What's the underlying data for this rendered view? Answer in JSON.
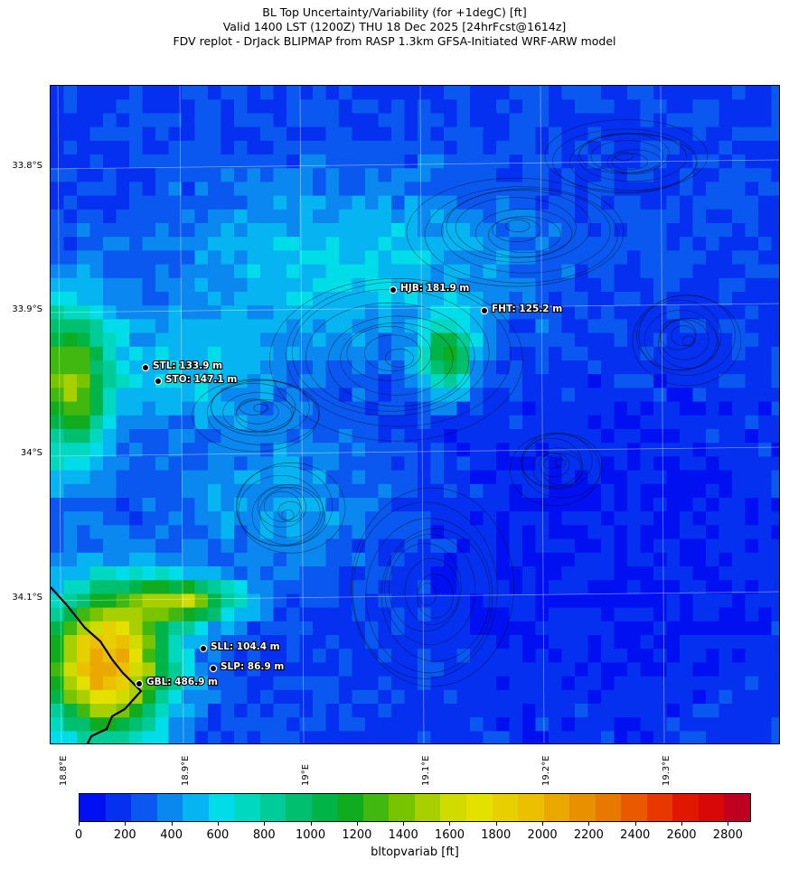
{
  "title": {
    "line1": "BL Top Uncertainty/Variability (for +1degC) [ft]",
    "line2": "Valid 1400 LST (1200Z) THU 18 Dec 2025 [24hrFcst@1614z]",
    "line3": "FDV replot - DrJack BLIPMAP from RASP 1.3km GFSA-Initiated WRF-ARW model"
  },
  "map": {
    "lat_labels": [
      "33.8°S",
      "33.9°S",
      "34°S",
      "34.1°S"
    ],
    "lon_labels": [
      "18.8°E",
      "18.9°E",
      "19°E",
      "19.1°E",
      "19.2°E",
      "19.3°E"
    ],
    "stations": [
      {
        "id": "HJB",
        "label": "HJB: 181.9 m"
      },
      {
        "id": "FHT",
        "label": "FHT: 125.2 m"
      },
      {
        "id": "STL",
        "label": "STL: 133.9 m"
      },
      {
        "id": "STO",
        "label": "STO: 147.1 m"
      },
      {
        "id": "SLL",
        "label": "SLL: 104.4 m"
      },
      {
        "id": "SLP",
        "label": "SLP: 86.9 m"
      },
      {
        "id": "GBL",
        "label": "GBL: 486.9 m"
      }
    ]
  },
  "colorbar": {
    "label": "bltopvariab [ft]",
    "ticks": [
      "0",
      "200",
      "400",
      "600",
      "800",
      "1000",
      "1200",
      "1400",
      "1600",
      "1800",
      "2000",
      "2200",
      "2400",
      "2600",
      "2800"
    ],
    "range": [
      0,
      2900
    ],
    "colors": [
      "#0010f0",
      "#0530f0",
      "#0a58f0",
      "#0a88f0",
      "#05b4f0",
      "#00dce8",
      "#00d8c0",
      "#00cc98",
      "#00c070",
      "#00b448",
      "#10ac20",
      "#40b810",
      "#78c400",
      "#a8d000",
      "#d0dc00",
      "#e4e000",
      "#e8d000",
      "#eac000",
      "#eaa800",
      "#e89000",
      "#e87800",
      "#ea5800",
      "#e83800",
      "#e01800",
      "#d80808",
      "#c00020"
    ]
  }
}
